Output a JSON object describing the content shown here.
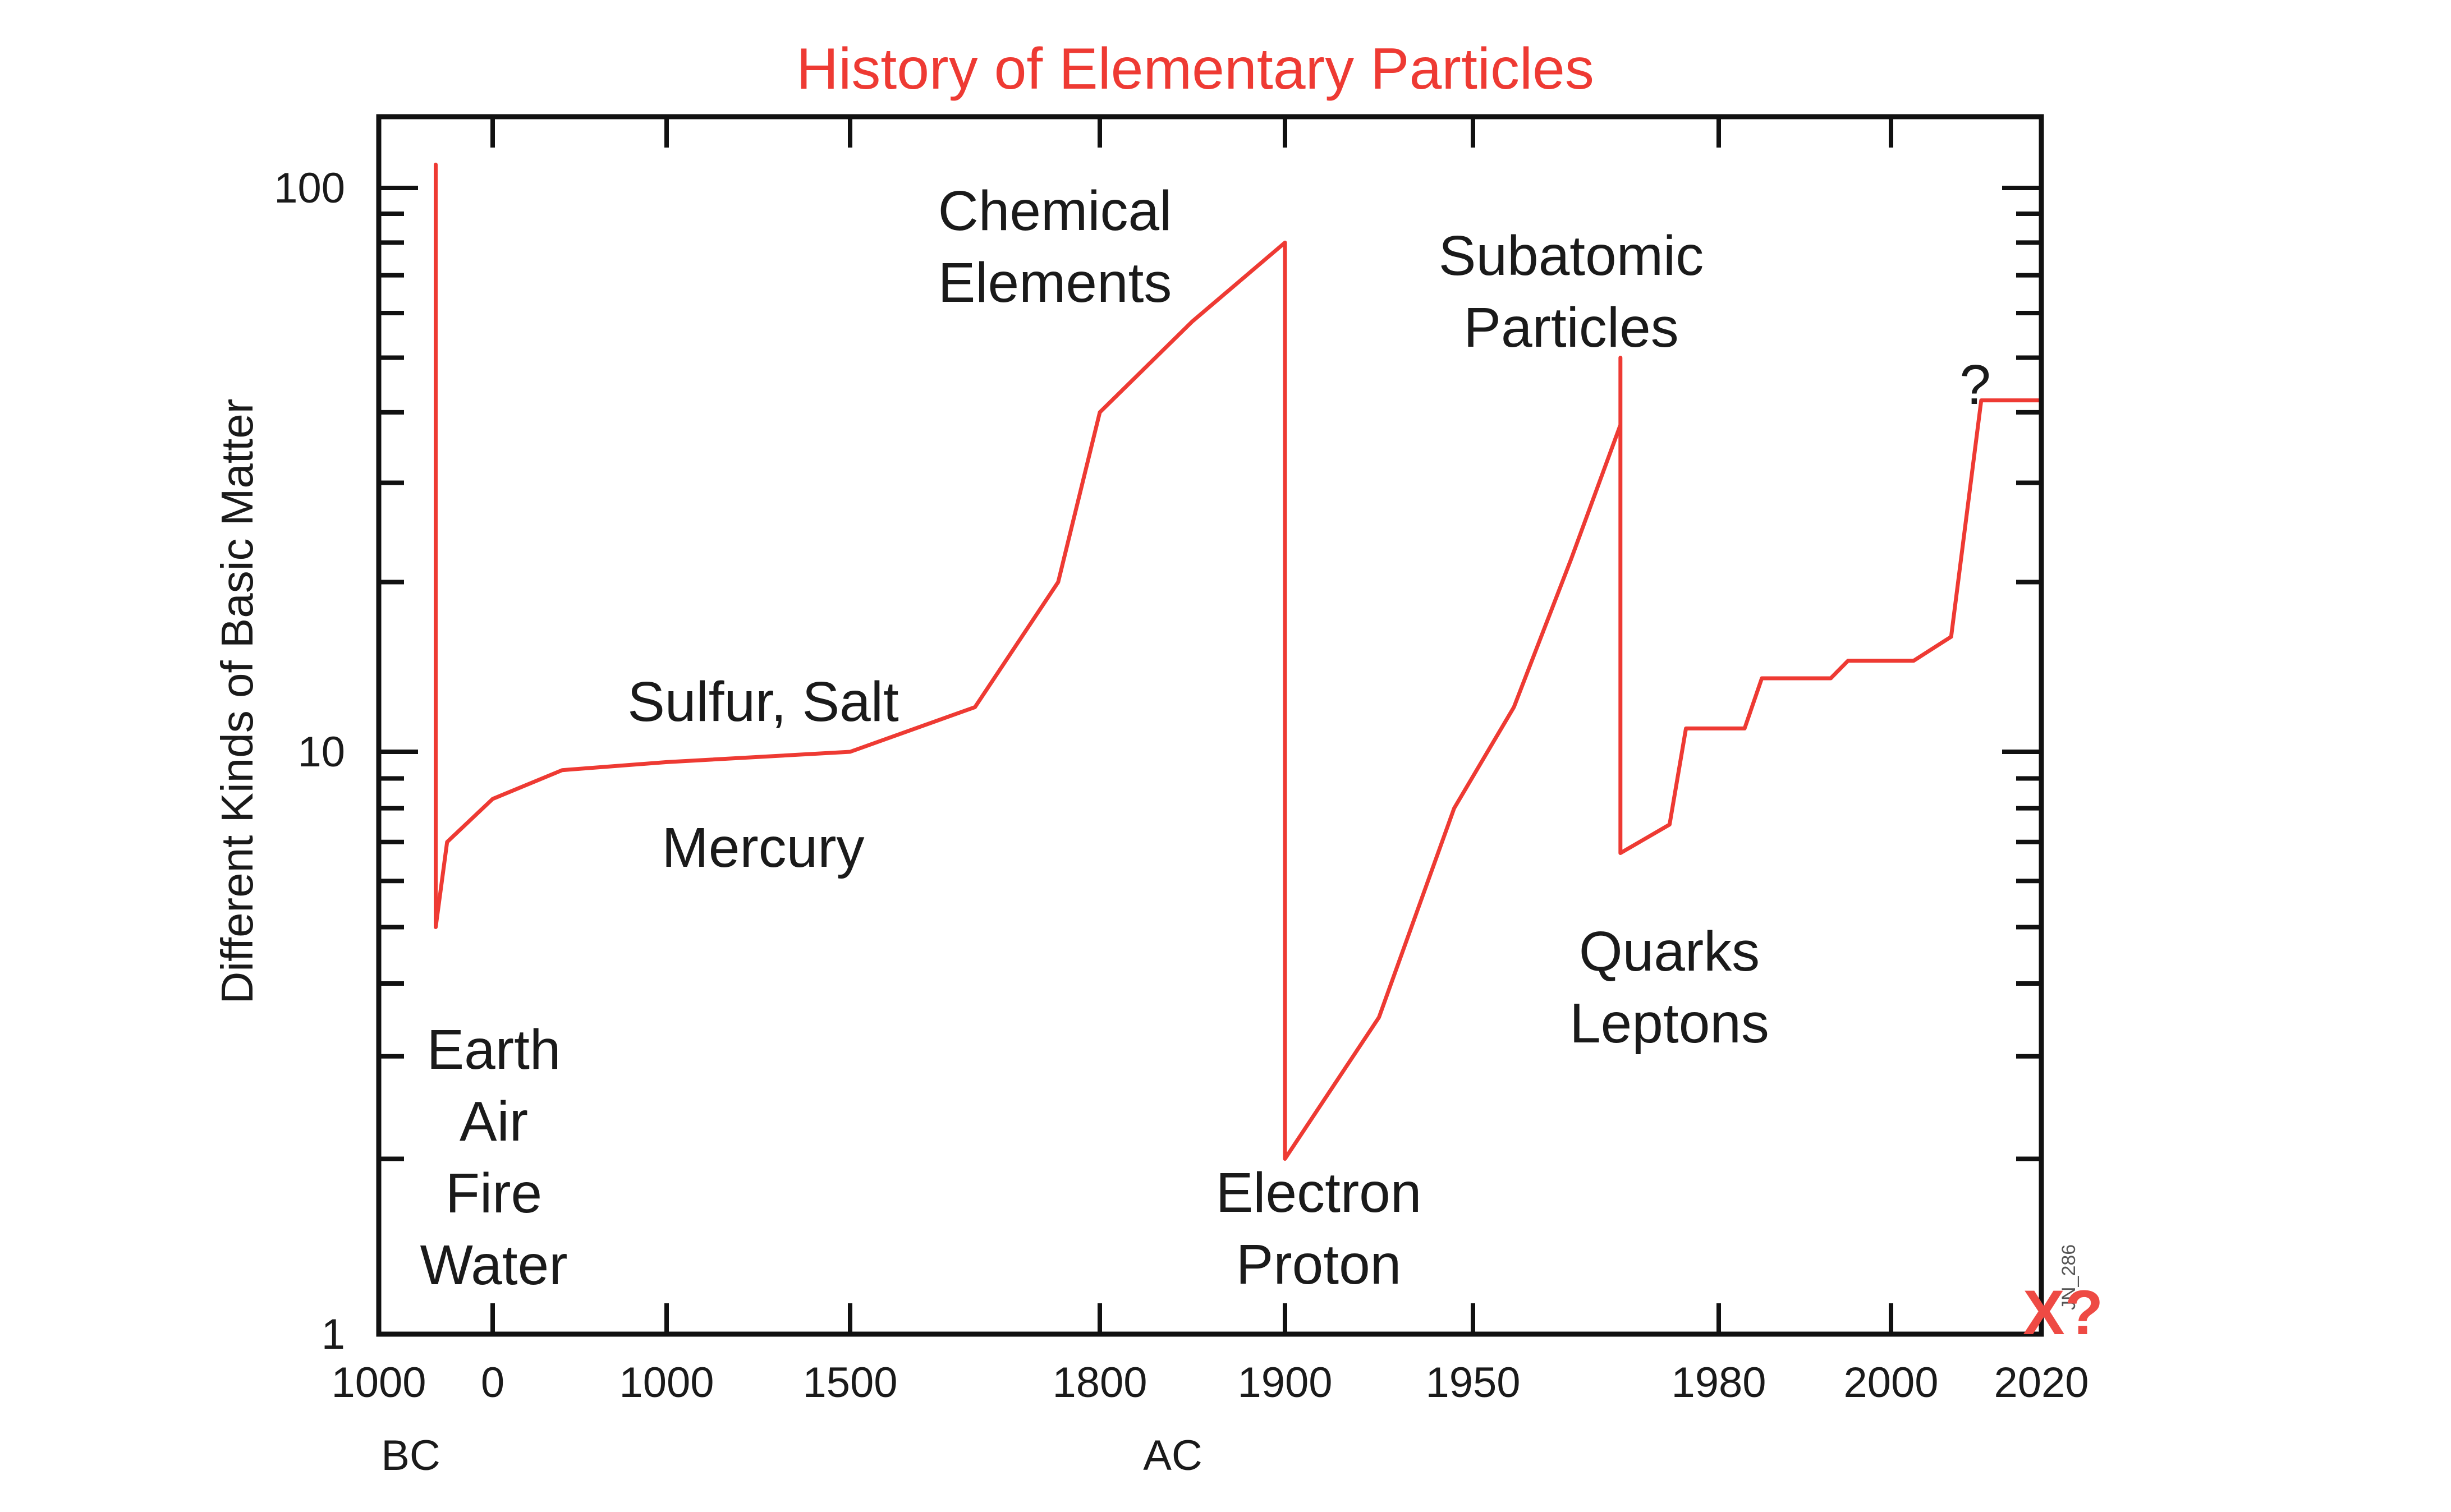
{
  "chart_data": {
    "type": "line",
    "title": "History of Elementary Particles",
    "xlabel": "",
    "ylabel": "Different Kinds of Basic Matter",
    "y_scale": "log",
    "ylim": [
      1,
      120
    ],
    "grid": false,
    "legend": "none",
    "colors": {
      "line": "#ee3a33",
      "title": "#ee3a33",
      "axis": "#111111"
    },
    "x_ticks": [
      "1000",
      "0",
      "1000",
      "1500",
      "1800",
      "1900",
      "1950",
      "1980",
      "2000",
      "2020"
    ],
    "y_ticks": [
      "100",
      "10",
      "1"
    ],
    "era_labels": [
      "BC",
      "AC"
    ],
    "series": [
      {
        "points": [
          {
            "x": "-500",
            "y": 110
          },
          {
            "x": "-500",
            "y": 5
          },
          {
            "x": "-400",
            "y": 7
          },
          {
            "x": "0",
            "y": 8.3
          },
          {
            "x": "400",
            "y": 9.3
          },
          {
            "x": "1000",
            "y": 9.6
          },
          {
            "x": "1500",
            "y": 10
          },
          {
            "x": "1650",
            "y": 12
          },
          {
            "x": "1750",
            "y": 20
          },
          {
            "x": "1800",
            "y": 40
          },
          {
            "x": "1850",
            "y": 58
          },
          {
            "x": "1900",
            "y": 80
          },
          {
            "x": "1900",
            "y": 2
          },
          {
            "x": "1925",
            "y": 3.5
          },
          {
            "x": "1945",
            "y": 8
          },
          {
            "x": "1955",
            "y": 12
          },
          {
            "x": "1962",
            "y": 22
          },
          {
            "x": "1968",
            "y": 38
          },
          {
            "x": "1968",
            "y": 50
          },
          {
            "x": "1968",
            "y": 6.7
          },
          {
            "x": "1974",
            "y": 7.5
          },
          {
            "x": "1976",
            "y": 11
          },
          {
            "x": "1983",
            "y": 11
          },
          {
            "x": "1985",
            "y": 13.5
          },
          {
            "x": "1993",
            "y": 13.5
          },
          {
            "x": "1995",
            "y": 14.5
          },
          {
            "x": "2003",
            "y": 14.5
          },
          {
            "x": "2008",
            "y": 16
          },
          {
            "x": "2012",
            "y": 42
          },
          {
            "x": "2020",
            "y": 42
          }
        ]
      }
    ],
    "annotations": [
      {
        "lines": [
          "Earth",
          "Air",
          "Fire",
          "Water"
        ]
      },
      {
        "lines": [
          "Sulfur, Salt"
        ]
      },
      {
        "lines": [
          "Mercury"
        ]
      },
      {
        "lines": [
          "Chemical",
          "Elements"
        ]
      },
      {
        "lines": [
          "Electron",
          "Proton"
        ]
      },
      {
        "lines": [
          "Subatomic",
          "Particles"
        ]
      },
      {
        "lines": [
          "Quarks",
          "Leptons"
        ]
      },
      {
        "lines": [
          "?"
        ]
      }
    ],
    "corner_mark": "X?",
    "credit": "JN_286"
  }
}
